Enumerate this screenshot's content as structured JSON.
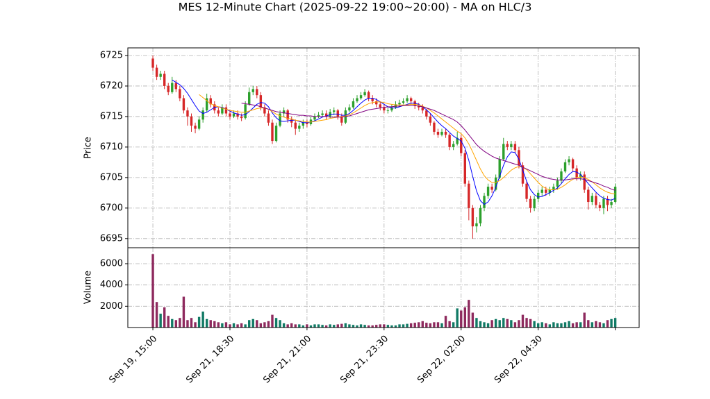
{
  "chart_data": {
    "type": "candlestick",
    "title": "MES 12-Minute Chart (2025-09-22 19:00~20:00) - MA on HLC/3",
    "ylabel": "Price",
    "grid": true,
    "xlim": [
      -6.5,
      126.2
    ],
    "xticks": [
      {
        "value": 0,
        "label": "Sep 19, 15:00"
      },
      {
        "value": 20,
        "label": "Sep 21, 18:30"
      },
      {
        "value": 40,
        "label": "Sep 21, 21:00"
      },
      {
        "value": 60,
        "label": "Sep 21, 23:30"
      },
      {
        "value": 80,
        "label": "Sep 22, 02:00"
      },
      {
        "value": 100,
        "label": "Sep 22, 04:30"
      },
      {
        "value": 120,
        "label": null
      }
    ],
    "ylim": [
      6693.5,
      6726.25
    ],
    "yticks": [
      6695,
      6700,
      6705,
      6710,
      6715,
      6720,
      6725
    ],
    "up_color": "#2ca02c",
    "down_color": "#d62728",
    "open": [
      6724.5,
      6723,
      6721.5,
      6722,
      6720,
      6719,
      6720.5,
      6719.5,
      6718,
      6716,
      6715,
      6713.5,
      6713,
      6714.5,
      6716,
      6718,
      6717,
      6716,
      6715.5,
      6716.5,
      6715.5,
      6715,
      6715.5,
      6715,
      6714.75,
      6717,
      6719,
      6719.5,
      6718.5,
      6716.5,
      6715.5,
      6714,
      6711,
      6713.5,
      6715.5,
      6716,
      6714.5,
      6714,
      6713,
      6713.5,
      6714,
      6713.75,
      6714.5,
      6715,
      6715.25,
      6715.5,
      6715,
      6715.75,
      6716,
      6715,
      6714,
      6716,
      6716.5,
      6717.5,
      6718,
      6718.5,
      6719,
      6718,
      6717.5,
      6717,
      6716.5,
      6716,
      6716,
      6716.5,
      6717,
      6717.25,
      6717.5,
      6718,
      6717.5,
      6716.75,
      6716.5,
      6716,
      6715,
      6714,
      6712.5,
      6712,
      6712.5,
      6712,
      6710,
      6710.5,
      6711.5,
      6709,
      6704,
      6700,
      6697,
      6697.5,
      6700,
      6702,
      6703.5,
      6703,
      6705,
      6708,
      6710.5,
      6710,
      6710.5,
      6709.5,
      6707,
      6704,
      6701.5,
      6700,
      6701.5,
      6702.5,
      6703,
      6702.5,
      6703,
      6703.5,
      6704.5,
      6706,
      6707.5,
      6708,
      6706.5,
      6705,
      6705.5,
      6703,
      6701,
      6702,
      6700.5,
      6700,
      6701.5,
      6700.5,
      6701
    ],
    "high": [
      6725,
      6723.5,
      6722.5,
      6722.5,
      6720.5,
      6721.5,
      6721,
      6720,
      6718.5,
      6716.5,
      6715.5,
      6714,
      6715,
      6716.5,
      6718.75,
      6718.5,
      6717.5,
      6716.5,
      6717,
      6717,
      6716,
      6716,
      6716,
      6715.5,
      6717.5,
      6719.75,
      6720,
      6720,
      6719,
      6717,
      6716,
      6714.5,
      6714,
      6716,
      6716.5,
      6716.25,
      6715,
      6714.5,
      6714,
      6714.5,
      6714.5,
      6715,
      6715.5,
      6715.75,
      6716,
      6716,
      6716.25,
      6716.5,
      6716.25,
      6715.5,
      6716.5,
      6717,
      6718,
      6718.5,
      6719,
      6719.5,
      6719.25,
      6718.5,
      6718,
      6717.5,
      6717,
      6716.5,
      6717,
      6717.5,
      6717.75,
      6718,
      6718.5,
      6718.25,
      6717.75,
      6717.25,
      6717,
      6716.25,
      6715.5,
      6714.25,
      6713,
      6713,
      6713,
      6712.25,
      6711,
      6712.5,
      6712,
      6709.5,
      6704.5,
      6700.5,
      6698.5,
      6700.5,
      6702.5,
      6704,
      6704,
      6705.5,
      6708.5,
      6711.5,
      6711,
      6711,
      6711,
      6710,
      6707.5,
      6704.5,
      6702,
      6702,
      6703,
      6703.5,
      6703.5,
      6703.5,
      6704,
      6705,
      6706.5,
      6708,
      6708.5,
      6708.25,
      6707,
      6706,
      6706,
      6703.5,
      6702.5,
      6702.5,
      6701,
      6702,
      6702,
      6701.5,
      6704
    ],
    "low": [
      6722.5,
      6721,
      6721,
      6719.5,
      6718.5,
      6718.75,
      6719,
      6717.5,
      6715.5,
      6713.5,
      6712.5,
      6712.25,
      6712.75,
      6714,
      6715.75,
      6716.5,
      6715.5,
      6715,
      6715.25,
      6715,
      6714.5,
      6714.75,
      6714.5,
      6714.25,
      6714.5,
      6716.75,
      6718.5,
      6718,
      6716,
      6715,
      6713.5,
      6710.5,
      6710.75,
      6713.25,
      6715,
      6714,
      6713.25,
      6712,
      6712.5,
      6713,
      6713.25,
      6713.5,
      6714.25,
      6714.75,
      6715,
      6714.5,
      6714.75,
      6715.25,
      6714.5,
      6713.5,
      6713.75,
      6715.75,
      6716.25,
      6717.25,
      6717.75,
      6718.25,
      6717.5,
      6717,
      6716.5,
      6716,
      6715.5,
      6715.5,
      6715.75,
      6716.25,
      6716.75,
      6717,
      6717.25,
      6717,
      6716.25,
      6716,
      6715.5,
      6714.5,
      6713.5,
      6712,
      6711.5,
      6711.75,
      6711.5,
      6709.5,
      6709.5,
      6710.25,
      6708.5,
      6703.5,
      6698,
      6695,
      6696,
      6697,
      6699.5,
      6701.5,
      6702.5,
      6702.75,
      6704.75,
      6707.75,
      6709.5,
      6709.5,
      6709,
      6706.5,
      6703.5,
      6701,
      6699.25,
      6699.5,
      6701,
      6702,
      6702,
      6702,
      6702.5,
      6703,
      6704,
      6705.75,
      6707,
      6706,
      6704.5,
      6704.5,
      6702.5,
      6699.75,
      6700.5,
      6700,
      6699.5,
      6699,
      6699.5,
      6700,
      6700.75
    ],
    "close": [
      6723,
      6721.5,
      6722,
      6720,
      6719,
      6720.5,
      6719.5,
      6718,
      6716,
      6715,
      6713.5,
      6713,
      6714.5,
      6716,
      6718,
      6717,
      6716,
      6715.5,
      6716.5,
      6715.5,
      6715,
      6715.5,
      6715,
      6714.75,
      6717,
      6719,
      6719.5,
      6718.5,
      6716.5,
      6715.5,
      6714,
      6711,
      6713.5,
      6715.5,
      6716,
      6714.5,
      6714,
      6713,
      6713.5,
      6714,
      6713.75,
      6714.5,
      6715,
      6715.25,
      6715.5,
      6715,
      6715.75,
      6716,
      6715,
      6714,
      6716,
      6716.5,
      6717.5,
      6718,
      6718.5,
      6719,
      6718,
      6717.5,
      6717,
      6716.5,
      6716,
      6716,
      6716.5,
      6717,
      6717.25,
      6717.5,
      6718,
      6717.5,
      6716.75,
      6716.5,
      6716,
      6715,
      6714,
      6712.5,
      6712,
      6712.5,
      6712,
      6710,
      6710.5,
      6711.5,
      6709,
      6704,
      6700,
      6697,
      6697.5,
      6700,
      6702,
      6703.5,
      6703,
      6705,
      6708,
      6710.5,
      6710,
      6710.5,
      6709.5,
      6707,
      6704,
      6701.5,
      6700,
      6701.5,
      6702.5,
      6703,
      6702.5,
      6703,
      6703.5,
      6704.5,
      6706,
      6707.5,
      6708,
      6706.5,
      6705,
      6705.5,
      6703,
      6701,
      6702,
      6700.5,
      6700,
      6701.5,
      6700.5,
      6701,
      6703.5
    ],
    "ma": [
      {
        "color": "#0000ff",
        "values": [
          null,
          null,
          null,
          null,
          null,
          6721,
          6720.6,
          6720.2,
          6719.6,
          6718.8,
          6717.8,
          6716.8,
          6715.9,
          6715.5,
          6715.7,
          6716.1,
          6716.5,
          6716.6,
          6716.5,
          6716.2,
          6715.9,
          6715.6,
          6715.4,
          6715.2,
          6715.3,
          6715.8,
          6716.4,
          6717.0,
          6717.3,
          6717.2,
          6716.6,
          6715.6,
          6714.8,
          6714.3,
          6714.2,
          6714.3,
          6714.4,
          6714.4,
          6714.2,
          6714.0,
          6714.0,
          6714.1,
          6714.3,
          6714.6,
          6714.9,
          6715.1,
          6715.3,
          6715.4,
          6715.4,
          6715.2,
          6715.2,
          6715.5,
          6716.0,
          6716.6,
          6717.2,
          6717.7,
          6718.0,
          6718.0,
          6717.8,
          6717.4,
          6717.0,
          6716.6,
          6716.4,
          6716.4,
          6716.6,
          6716.8,
          6717.0,
          6717.2,
          6717.2,
          6717.0,
          6716.6,
          6716.1,
          6715.5,
          6714.8,
          6714.1,
          6713.5,
          6713.0,
          6712.4,
          6711.8,
          6711.4,
          6711.0,
          6709.8,
          6707.8,
          6705.2,
          6702.8,
          6701.2,
          6700.6,
          6701.0,
          6702.0,
          6703.4,
          6705.2,
          6707.0,
          6708.4,
          6709.2,
          6709.1,
          6708.0,
          6706.2,
          6704.4,
          6703.0,
          6702.2,
          6701.8,
          6701.9,
          6702.2,
          6702.5,
          6702.9,
          6703.3,
          6704.0,
          6704.8,
          6705.5,
          6706.0,
          6705.9,
          6705.5,
          6704.8,
          6704.0,
          6703.3,
          6702.6,
          6702.0,
          6701.6,
          6701.4,
          6701.3,
          6701.6
        ]
      },
      {
        "color": "#ffa500",
        "values": [
          null,
          null,
          null,
          null,
          null,
          null,
          null,
          null,
          null,
          null,
          null,
          null,
          6718.6,
          6718.1,
          6717.6,
          6717.1,
          6716.8,
          6716.6,
          6716.4,
          6716.2,
          6716.0,
          6715.9,
          6715.8,
          6715.7,
          6715.7,
          6715.9,
          6716.1,
          6716.3,
          6716.4,
          6716.4,
          6716.2,
          6715.8,
          6715.4,
          6715.1,
          6714.9,
          6714.7,
          6714.6,
          6714.4,
          6714.3,
          6714.2,
          6714.1,
          6714.1,
          6714.2,
          6714.3,
          6714.4,
          6714.5,
          6714.7,
          6714.8,
          6714.9,
          6715.0,
          6715.1,
          6715.3,
          6715.6,
          6716.0,
          6716.4,
          6716.8,
          6717.1,
          6717.3,
          6717.4,
          6717.4,
          6717.3,
          6717.1,
          6717.0,
          6716.9,
          6716.9,
          6716.9,
          6716.9,
          6717.0,
          6717.0,
          6716.9,
          6716.7,
          6716.4,
          6716.0,
          6715.6,
          6715.1,
          6714.6,
          6714.1,
          6713.6,
          6713.1,
          6712.6,
          6712.2,
          6711.5,
          6710.5,
          6709.2,
          6707.8,
          6706.4,
          6705.3,
          6704.6,
          6704.2,
          6704.2,
          6704.5,
          6705.0,
          6705.6,
          6706.2,
          6706.6,
          6706.8,
          6706.7,
          6706.3,
          6705.6,
          6704.9,
          6704.2,
          6703.6,
          6703.2,
          6703.0,
          6703.0,
          6703.1,
          6703.4,
          6703.8,
          6704.3,
          6704.7,
          6705.0,
          6705.1,
          6705.0,
          6704.7,
          6704.3,
          6703.8,
          6703.3,
          6702.9,
          6702.6,
          6702.4,
          6702.3
        ]
      },
      {
        "color": "#800080",
        "values": [
          null,
          null,
          null,
          null,
          null,
          null,
          null,
          null,
          null,
          null,
          null,
          null,
          null,
          null,
          null,
          null,
          null,
          null,
          null,
          null,
          null,
          null,
          null,
          6717.2,
          6717.1,
          6717.0,
          6716.9,
          6716.8,
          6716.6,
          6716.4,
          6716.2,
          6716.0,
          6715.8,
          6715.7,
          6715.6,
          6715.5,
          6715.4,
          6715.3,
          6715.2,
          6715.2,
          6715.1,
          6715.1,
          6715.0,
          6715.0,
          6715.0,
          6715.0,
          6714.9,
          6714.9,
          6714.9,
          6714.9,
          6715.0,
          6715.1,
          6715.3,
          6715.5,
          6715.7,
          6715.9,
          6716.1,
          6716.2,
          6716.3,
          6716.4,
          6716.5,
          6716.6,
          6716.6,
          6716.7,
          6716.7,
          6716.8,
          6716.8,
          6716.8,
          6716.8,
          6716.7,
          6716.6,
          6716.4,
          6716.2,
          6716.0,
          6715.7,
          6715.4,
          6715.1,
          6714.8,
          6714.5,
          6714.1,
          6713.5,
          6712.8,
          6712.0,
          6711.2,
          6710.4,
          6709.8,
          6709.3,
          6708.9,
          6708.5,
          6708.2,
          6708.0,
          6707.8,
          6707.6,
          6707.4,
          6707.2,
          6707.0,
          6706.7,
          6706.4,
          6706.1,
          6705.8,
          6705.5,
          6705.2,
          6705.0,
          6704.8,
          6704.7,
          6704.6,
          6704.6,
          6704.6,
          6704.7,
          6704.8,
          6704.8,
          6704.8,
          6704.7,
          6704.5,
          6704.3,
          6704.1,
          6703.9,
          6703.6,
          6703.4,
          6703.1,
          6702.9
        ]
      }
    ],
    "volume": {
      "ylabel": "Volume",
      "ylim": [
        0,
        7500
      ],
      "yticks": [
        2000,
        4000,
        6000
      ],
      "up_color": "#117a65",
      "down_color": "#8e2a5e",
      "values": [
        6900,
        2400,
        1300,
        1900,
        1100,
        800,
        700,
        900,
        2900,
        700,
        900,
        500,
        1000,
        1500,
        800,
        700,
        600,
        500,
        400,
        500,
        300,
        400,
        300,
        400,
        300,
        700,
        800,
        700,
        400,
        500,
        600,
        1200,
        900,
        700,
        400,
        300,
        400,
        300,
        300,
        200,
        300,
        200,
        300,
        300,
        250,
        200,
        300,
        250,
        300,
        350,
        400,
        300,
        250,
        200,
        300,
        250,
        200,
        200,
        250,
        300,
        300,
        250,
        200,
        200,
        300,
        300,
        350,
        400,
        450,
        500,
        600,
        450,
        400,
        500,
        500,
        400,
        1100,
        600,
        500,
        1800,
        1600,
        1900,
        2600,
        1400,
        900,
        600,
        500,
        400,
        700,
        800,
        700,
        900,
        800,
        700,
        500,
        700,
        1200,
        900,
        800,
        600,
        400,
        500,
        400,
        300,
        500,
        400,
        400,
        500,
        600,
        400,
        500,
        500,
        1400,
        700,
        500,
        600,
        500,
        400,
        700,
        800,
        900
      ]
    }
  }
}
